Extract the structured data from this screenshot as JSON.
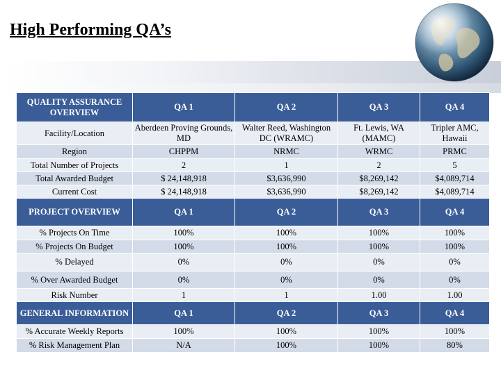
{
  "slide": {
    "title": "High Performing QA’s"
  },
  "globe": {
    "icon": "globe-icon"
  },
  "table": {
    "sections": [
      {
        "header": [
          "QUALITY ASSURANCE OVERVIEW",
          "QA 1",
          "QA 2",
          "QA 3",
          "QA 4"
        ],
        "rows": [
          [
            "Facility/Location",
            "Aberdeen Proving Grounds, MD",
            "Walter Reed, Washington DC (WRAMC)",
            "Ft. Lewis, WA (MAMC)",
            "Tripler AMC, Hawaii"
          ],
          [
            "Region",
            "CHPPM",
            "NRMC",
            "WRMC",
            "PRMC"
          ],
          [
            "Total Number of Projects",
            "2",
            "1",
            "2",
            "5"
          ],
          [
            "Total Awarded Budget",
            "$ 24,148,918",
            "$3,636,990",
            "$8,269,142",
            "$4,089,714"
          ],
          [
            "Current Cost",
            "$ 24,148,918",
            "$3,636,990",
            "$8,269,142",
            "$4,089,714"
          ]
        ]
      },
      {
        "header": [
          "PROJECT OVERVIEW",
          "QA 1",
          "QA 2",
          "QA 3",
          "QA 4"
        ],
        "rows": [
          [
            "% Projects On Time",
            "100%",
            "100%",
            "100%",
            "100%"
          ],
          [
            "% Projects On Budget",
            "100%",
            "100%",
            "100%",
            "100%"
          ],
          [
            "% Delayed",
            "0%",
            "0%",
            "0%",
            "0%"
          ],
          [
            "% Over Awarded Budget",
            "0%",
            "0%",
            "0%",
            "0%"
          ],
          [
            "Risk Number",
            "1",
            "1",
            "1.00",
            "1.00"
          ]
        ]
      },
      {
        "header": [
          "GENERAL INFORMATION",
          "QA 1",
          "QA 2",
          "QA 3",
          "QA 4"
        ],
        "rows": [
          [
            "% Accurate Weekly Reports",
            "100%",
            "100%",
            "100%",
            "100%"
          ],
          [
            "% Risk Management Plan",
            "N/A",
            "100%",
            "100%",
            "80%"
          ]
        ]
      }
    ]
  }
}
